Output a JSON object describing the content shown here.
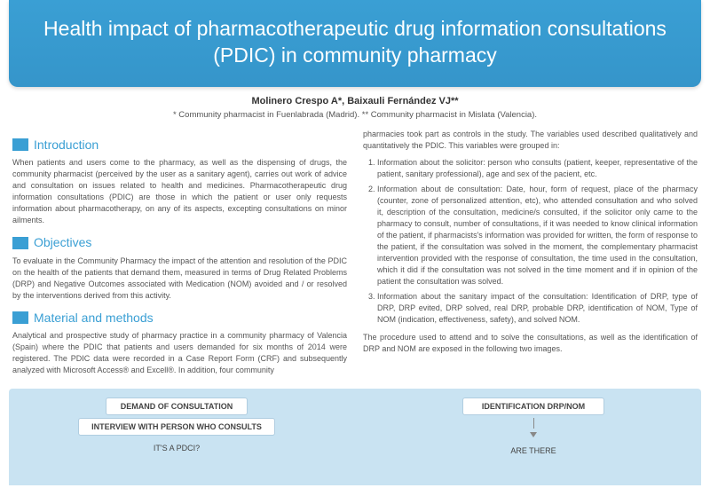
{
  "banner": {
    "title": "Health impact of pharmacotherapeutic drug information consultations (PDIC) in community pharmacy",
    "bg_color": "#3a9fd4",
    "text_color": "#ffffff",
    "title_fontsize": 23
  },
  "authors": "Molinero Crespo A*, Baixauli Fernández VJ**",
  "affiliations": "* Community pharmacist in Fuenlabrada (Madrid). ** Community pharmacist in Mislata (Valencia).",
  "accent_color": "#3a9fd4",
  "body_text_color": "#555555",
  "sections": {
    "intro": {
      "title": "Introduction",
      "text": "When patients and users come to the pharmacy, as well as the dispensing of drugs, the community pharmacist (perceived by the user as a sanitary agent), carries out work of advice and consultation on issues related to health and medicines. Pharmacotherapeutic drug information consultations (PDIC) are those in which the patient or user only requests information about pharmacotherapy, on any of its aspects, excepting consultations on minor ailments."
    },
    "objectives": {
      "title": "Objectives",
      "text": "To evaluate in the Community Pharmacy the impact of the attention and resolution of the PDIC on the health of the patients that demand them, measured in terms of Drug Related Problems (DRP) and Negative Outcomes associated with Medication (NOM) avoided and / or resolved by the interventions derived from this activity."
    },
    "methods": {
      "title": "Material and methods",
      "text": "Analytical and prospective study of pharmacy practice in a community pharmacy of Valencia (Spain) where the PDIC that patients and users demanded for six months of 2014 were registered. The PDIC data were recorded in a Case Report Form (CRF) and subsequently analyzed with Microsoft Access® and Excell®. In addition, four community"
    },
    "methods_cont": {
      "lead": "pharmacies took part as controls in the study. The variables used described qualitatively and quantitatively the PDIC. This variables were grouped in:",
      "items": [
        "Information about the solicitor: person who consults (patient, keeper, representative of the patient, sanitary professional), age and sex of the pacient, etc.",
        "Information about de consultation: Date, hour, form of request, place of the pharmacy (counter, zone of personalized attention, etc), who attended consultation and who solved it, description of the consultation, medicine/s consulted, if the solicitor only came to the pharmacy to consult, number of consultations, if it was needed to know clinical information of the patient, if pharmacists's information was provided for written, the form of response to the patient, if the consultation was solved in the moment, the complementary pharmacist intervention provided with the response of consultation, the time used in the consultation, which it did if the consultation was not solved in the time moment and if in opinion of the patient the consultation was solved.",
        "Information about the sanitary impact of the consultation: Identification of DRP, type of DRP, DRP evited, DRP solved, real DRP, probable DRP, identification of NOM, Type of NOM (indication, effectiveness, safety), and solved NOM."
      ],
      "tail": "The procedure used to attend and to solve the consultations, as well as the identification of DRP and NOM are exposed in the following two images."
    }
  },
  "flowchart": {
    "bg_color": "#c9e3f2",
    "box_bg": "#ffffff",
    "box_border": "#b0cde0",
    "box_text_color": "#444444",
    "left": {
      "nodes": [
        {
          "label": "DEMAND OF CONSULTATION",
          "boxed": true
        },
        {
          "label": "INTERVIEW WITH PERSON WHO CONSULTS",
          "boxed": true
        },
        {
          "label": "IT'S A PDCI?",
          "boxed": false
        }
      ]
    },
    "right": {
      "nodes": [
        {
          "label": "IDENTIFICATION DRP/NOM",
          "boxed": true
        },
        {
          "label": "ARE THERE",
          "boxed": false
        }
      ]
    }
  }
}
